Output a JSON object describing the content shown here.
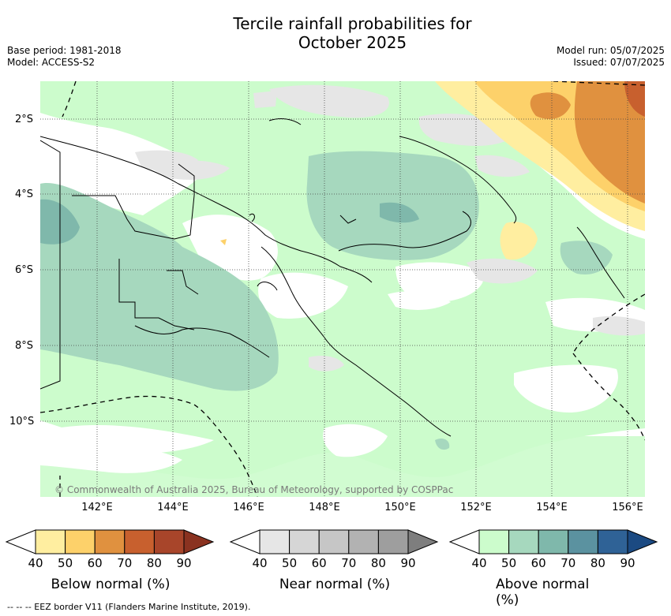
{
  "title": {
    "line1": "Tercile rainfall probabilities for",
    "line2": "October 2025"
  },
  "meta": {
    "base_period": "Base period: 1981-2018",
    "model": "Model: ACCESS-S2",
    "model_run": "Model run: 05/07/2025",
    "issued": "Issued: 07/07/2025"
  },
  "map": {
    "credit": "© Commonwealth of Australia 2025, Bureau of Meteorology, supported by COSPPac",
    "lat_labels": [
      "2°S",
      "4°S",
      "6°S",
      "8°S",
      "10°S"
    ],
    "lon_labels": [
      "142°E",
      "144°E",
      "146°E",
      "148°E",
      "150°E",
      "152°E",
      "154°E",
      "156°E"
    ]
  },
  "colorbars": {
    "ticks": [
      "40",
      "50",
      "60",
      "70",
      "80",
      "90"
    ],
    "below": {
      "label": "Below normal (%)",
      "colors": [
        "#ffffff",
        "#ffeea0",
        "#fdd16a",
        "#e0913f",
        "#c8602e",
        "#a8452a",
        "#8a3220"
      ]
    },
    "near": {
      "label": "Near normal (%)",
      "colors": [
        "#ffffff",
        "#e6e6e6",
        "#d6d6d6",
        "#c6c6c6",
        "#b2b2b2",
        "#9e9e9e",
        "#7e7e7e"
      ]
    },
    "above": {
      "label": "Above normal (%)",
      "colors": [
        "#ffffff",
        "#ccfccc",
        "#a6d8be",
        "#7fb8ab",
        "#5b92a0",
        "#2f6296",
        "#1b4a82"
      ]
    }
  },
  "footnote": "--  --  -- EEZ border V11 (Flanders Marine Institute, 2019)."
}
